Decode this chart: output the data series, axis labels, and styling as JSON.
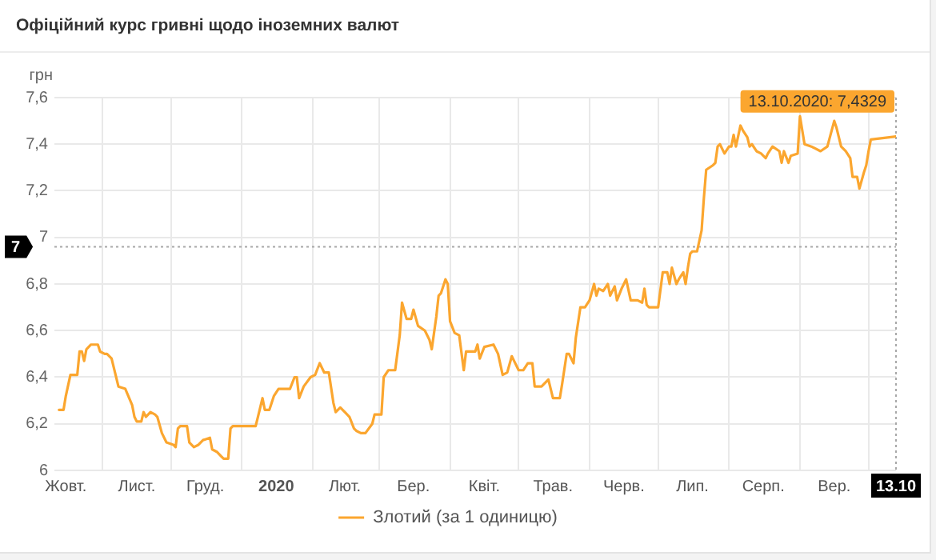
{
  "chart_data": {
    "type": "line",
    "title": "Офіційний курс гривні щодо іноземних валют",
    "ylabel": "грн",
    "x": [
      "2019-10-13",
      "2019-10-15",
      "2019-10-16",
      "2019-10-18",
      "2019-10-21",
      "2019-10-22",
      "2019-10-23",
      "2019-10-24",
      "2019-10-25",
      "2019-10-27",
      "2019-10-30",
      "2019-10-31",
      "2019-11-02",
      "2019-11-03",
      "2019-11-05",
      "2019-11-08",
      "2019-11-11",
      "2019-11-14",
      "2019-11-15",
      "2019-11-16",
      "2019-11-18",
      "2019-11-19",
      "2019-11-20",
      "2019-11-22",
      "2019-11-24",
      "2019-11-25",
      "2019-11-27",
      "2019-11-29",
      "2019-12-02",
      "2019-12-03",
      "2019-12-04",
      "2019-12-05",
      "2019-12-08",
      "2019-12-09",
      "2019-12-11",
      "2019-12-13",
      "2019-12-15",
      "2019-12-18",
      "2019-12-19",
      "2019-12-21",
      "2019-12-23",
      "2019-12-24",
      "2019-12-26",
      "2019-12-27",
      "2019-12-28",
      "2020-01-07",
      "2020-01-08",
      "2020-01-10",
      "2020-01-11",
      "2020-01-13",
      "2020-01-14",
      "2020-01-15",
      "2020-01-17",
      "2020-01-22",
      "2020-01-24",
      "2020-01-25",
      "2020-01-26",
      "2020-01-28",
      "2020-01-31",
      "2020-02-02",
      "2020-02-04",
      "2020-02-06",
      "2020-02-08",
      "2020-02-10",
      "2020-02-11",
      "2020-02-13",
      "2020-02-15",
      "2020-02-17",
      "2020-02-19",
      "2020-02-20",
      "2020-02-22",
      "2020-02-24",
      "2020-02-27",
      "2020-02-28",
      "2020-03-02",
      "2020-03-03",
      "2020-03-05",
      "2020-03-08",
      "2020-03-10",
      "2020-03-11",
      "2020-03-13",
      "2020-03-15",
      "2020-03-16",
      "2020-03-18",
      "2020-03-21",
      "2020-03-23",
      "2020-03-24",
      "2020-03-26",
      "2020-03-27",
      "2020-03-28",
      "2020-03-30",
      "2020-03-31",
      "2020-04-01",
      "2020-04-03",
      "2020-04-05",
      "2020-04-07",
      "2020-04-08",
      "2020-04-12",
      "2020-04-13",
      "2020-04-14",
      "2020-04-16",
      "2020-04-20",
      "2020-04-22",
      "2020-04-24",
      "2020-04-26",
      "2020-04-28",
      "2020-04-29",
      "2020-05-01",
      "2020-05-03",
      "2020-05-05",
      "2020-05-07",
      "2020-05-08",
      "2020-05-11",
      "2020-05-14",
      "2020-05-16",
      "2020-05-19",
      "2020-05-20",
      "2020-05-22",
      "2020-05-23",
      "2020-05-25",
      "2020-05-26",
      "2020-05-28",
      "2020-05-30",
      "2020-06-01",
      "2020-06-03",
      "2020-06-04",
      "2020-06-05",
      "2020-06-07",
      "2020-06-09",
      "2020-06-10",
      "2020-06-12",
      "2020-06-13",
      "2020-06-15",
      "2020-06-17",
      "2020-06-19",
      "2020-06-22",
      "2020-06-24",
      "2020-06-25",
      "2020-06-26",
      "2020-06-27",
      "2020-07-01",
      "2020-07-03",
      "2020-07-05",
      "2020-07-06",
      "2020-07-07",
      "2020-07-09",
      "2020-07-10",
      "2020-07-12",
      "2020-07-13",
      "2020-07-14",
      "2020-07-15",
      "2020-07-16",
      "2020-07-18",
      "2020-07-20",
      "2020-07-21",
      "2020-07-22",
      "2020-07-25",
      "2020-07-26",
      "2020-07-27",
      "2020-07-28",
      "2020-07-30",
      "2020-08-01",
      "2020-08-02",
      "2020-08-03",
      "2020-08-04",
      "2020-08-06",
      "2020-08-07",
      "2020-08-09",
      "2020-08-10",
      "2020-08-11",
      "2020-08-13",
      "2020-08-15",
      "2020-08-17",
      "2020-08-18",
      "2020-08-20",
      "2020-08-23",
      "2020-08-24",
      "2020-08-25",
      "2020-08-27",
      "2020-08-28",
      "2020-08-31",
      "2020-09-01",
      "2020-09-03",
      "2020-09-06",
      "2020-09-10",
      "2020-09-13",
      "2020-09-16",
      "2020-09-17",
      "2020-09-19",
      "2020-09-21",
      "2020-09-23",
      "2020-09-24",
      "2020-09-26",
      "2020-09-27",
      "2020-09-29",
      "2020-09-30",
      "2020-10-01",
      "2020-10-02",
      "2020-10-13"
    ],
    "series": [
      {
        "name": "Злотий (за 1 одиницю)",
        "color": "#fba62f",
        "values": [
          6.26,
          6.26,
          6.32,
          6.41,
          6.41,
          6.51,
          6.51,
          6.47,
          6.52,
          6.54,
          6.54,
          6.51,
          6.5,
          6.5,
          6.48,
          6.36,
          6.35,
          6.28,
          6.23,
          6.21,
          6.21,
          6.25,
          6.23,
          6.25,
          6.24,
          6.23,
          6.16,
          6.12,
          6.11,
          6.1,
          6.18,
          6.19,
          6.19,
          6.12,
          6.1,
          6.11,
          6.13,
          6.14,
          6.09,
          6.08,
          6.06,
          6.05,
          6.05,
          6.18,
          6.19,
          6.19,
          6.23,
          6.31,
          6.26,
          6.26,
          6.29,
          6.32,
          6.35,
          6.35,
          6.4,
          6.4,
          6.31,
          6.36,
          6.4,
          6.41,
          6.46,
          6.42,
          6.42,
          6.29,
          6.25,
          6.27,
          6.25,
          6.23,
          6.18,
          6.17,
          6.16,
          6.16,
          6.2,
          6.24,
          6.24,
          6.4,
          6.43,
          6.43,
          6.58,
          6.72,
          6.65,
          6.65,
          6.69,
          6.62,
          6.6,
          6.56,
          6.52,
          6.66,
          6.75,
          6.76,
          6.82,
          6.8,
          6.64,
          6.59,
          6.58,
          6.43,
          6.51,
          6.51,
          6.54,
          6.48,
          6.53,
          6.54,
          6.5,
          6.41,
          6.42,
          6.49,
          6.47,
          6.43,
          6.43,
          6.46,
          6.46,
          6.36,
          6.36,
          6.39,
          6.31,
          6.31,
          6.37,
          6.5,
          6.5,
          6.46,
          6.57,
          6.7,
          6.7,
          6.73,
          6.8,
          6.75,
          6.78,
          6.77,
          6.8,
          6.75,
          6.79,
          6.73,
          6.78,
          6.82,
          6.73,
          6.73,
          6.72,
          6.78,
          6.71,
          6.7,
          6.7,
          6.85,
          6.85,
          6.8,
          6.87,
          6.8,
          6.82,
          6.85,
          6.8,
          6.87,
          6.93,
          6.94,
          6.94,
          7.03,
          7.17,
          7.29,
          7.31,
          7.32,
          7.39,
          7.4,
          7.36,
          7.39,
          7.39,
          7.44,
          7.39,
          7.48,
          7.46,
          7.43,
          7.39,
          7.4,
          7.37,
          7.36,
          7.34,
          7.36,
          7.39,
          7.37,
          7.32,
          7.37,
          7.32,
          7.35,
          7.36,
          7.52,
          7.4,
          7.39,
          7.37,
          7.39,
          7.5,
          7.47,
          7.39,
          7.37,
          7.34,
          7.26,
          7.26,
          7.21,
          7.28,
          7.31,
          7.37,
          7.42,
          7.4329
        ]
      }
    ],
    "xlim": [
      "2019-10-11",
      "2020-10-13"
    ],
    "xticks": [
      {
        "value": "2019-10-16",
        "label": "Жовт."
      },
      {
        "value": "2019-11-01",
        "label": null
      },
      {
        "value": "2019-11-16",
        "label": "Лист."
      },
      {
        "value": "2019-12-01",
        "label": null
      },
      {
        "value": "2019-12-16",
        "label": "Груд."
      },
      {
        "value": "2020-01-01",
        "label": null
      },
      {
        "value": "2020-01-16",
        "label": "2020"
      },
      {
        "value": "2020-02-01",
        "label": null
      },
      {
        "value": "2020-02-15",
        "label": "Лют."
      },
      {
        "value": "2020-03-01",
        "label": null
      },
      {
        "value": "2020-03-16",
        "label": "Бер."
      },
      {
        "value": "2020-04-01",
        "label": null
      },
      {
        "value": "2020-04-16",
        "label": "Квіт."
      },
      {
        "value": "2020-05-01",
        "label": null
      },
      {
        "value": "2020-05-16",
        "label": "Трав."
      },
      {
        "value": "2020-06-01",
        "label": null
      },
      {
        "value": "2020-06-16",
        "label": "Черв."
      },
      {
        "value": "2020-07-01",
        "label": null
      },
      {
        "value": "2020-07-16",
        "label": "Лип."
      },
      {
        "value": "2020-08-01",
        "label": null
      },
      {
        "value": "2020-08-16",
        "label": "Серп."
      },
      {
        "value": "2020-09-01",
        "label": null
      },
      {
        "value": "2020-09-16",
        "label": "Вер."
      },
      {
        "value": "2020-10-01",
        "label": null
      },
      {
        "value": "2020-10-13",
        "label": "13.10"
      }
    ],
    "ylim": [
      6,
      7.6
    ],
    "yticks": [
      6,
      {
        "value": 6.2,
        "label": "6,2"
      },
      {
        "value": 6.4,
        "label": "6,4"
      },
      {
        "value": 6.6,
        "label": "6,6"
      },
      {
        "value": 6.8,
        "label": "6,8"
      },
      7,
      {
        "value": 7.2,
        "label": "7,2"
      },
      {
        "value": 7.4,
        "label": "7,4"
      },
      {
        "value": 7.6,
        "label": "7,6"
      }
    ],
    "grid": true,
    "legend": "bottom",
    "ref_lines": [
      {
        "axis": "y",
        "value": 6.96,
        "label": "7",
        "color": "#a8a8a8",
        "line_style": "dotted"
      },
      {
        "axis": "x",
        "value": "2020-10-13",
        "color": "#a8a8a8",
        "line_style": "dotted"
      }
    ],
    "annotations": [
      {
        "text": "13.10.2020: 7,4329",
        "x": "2020-10-13",
        "y": 7.4329
      }
    ]
  }
}
